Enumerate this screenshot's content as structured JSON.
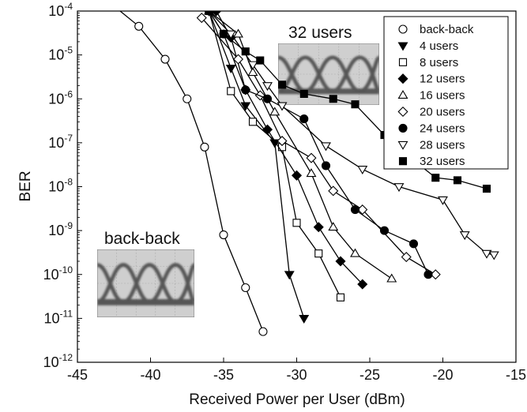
{
  "chart_data": {
    "type": "line",
    "xlabel": "Received Power per User (dBm)",
    "ylabel": "BER",
    "xlim": [
      -45,
      -15
    ],
    "ylim_exponent": [
      -12,
      -4
    ],
    "y_scale": "log",
    "x_ticks": [
      "-45",
      "-40",
      "-35",
      "-30",
      "-25",
      "-20",
      "-15"
    ],
    "y_tick_exponents": [
      "-4",
      "-5",
      "-6",
      "-7",
      "-8",
      "-9",
      "-10",
      "-11",
      "-12"
    ],
    "y_tick_base": "10",
    "grid": false,
    "legend_position": "top-right",
    "insets": [
      {
        "label": "back-back",
        "position": "lower-left"
      },
      {
        "label": "32 users",
        "position": "top-center"
      }
    ],
    "series": [
      {
        "name": "back-back",
        "marker": "circle-open",
        "x": [
          -42.5,
          -40.8,
          -39.0,
          -37.5,
          -36.3,
          -35.0,
          -33.5,
          -32.3
        ],
        "y": [
          0.00013,
          4.5e-05,
          8e-06,
          1e-06,
          8e-08,
          8e-10,
          5e-11,
          5e-12
        ]
      },
      {
        "name": "4 users",
        "marker": "triangle-down-filled",
        "x": [
          -36.0,
          -34.5,
          -33.5,
          -31.5,
          -30.5,
          -29.5
        ],
        "y": [
          0.0001,
          5e-06,
          7e-07,
          1e-07,
          1e-10,
          1e-11
        ]
      },
      {
        "name": "8 users",
        "marker": "square-open",
        "x": [
          -36.0,
          -34.5,
          -33.0,
          -31.0,
          -30.0,
          -28.5,
          -27.0
        ],
        "y": [
          0.0001,
          1.5e-06,
          3e-07,
          8e-08,
          1.5e-09,
          3e-10,
          3e-11
        ]
      },
      {
        "name": "12 users",
        "marker": "diamond-filled",
        "x": [
          -35.5,
          -34.5,
          -33.5,
          -32.0,
          -30.0,
          -28.5,
          -27.0,
          -25.5
        ],
        "y": [
          0.0001,
          2.5e-05,
          1.6e-06,
          2e-07,
          1.8e-08,
          1.2e-09,
          2e-10,
          6e-11
        ]
      },
      {
        "name": "16 users",
        "marker": "triangle-up-open",
        "x": [
          -36.0,
          -34.0,
          -33.0,
          -31.5,
          -29.0,
          -27.5,
          -26.0,
          -23.5
        ],
        "y": [
          0.0001,
          3e-05,
          4e-06,
          5e-07,
          2e-08,
          1.2e-09,
          3e-10,
          8e-11
        ]
      },
      {
        "name": "20 users",
        "marker": "diamond-open",
        "x": [
          -36.5,
          -34.0,
          -32.5,
          -31.0,
          -29.0,
          -27.5,
          -25.5,
          -22.5,
          -20.5
        ],
        "y": [
          7e-05,
          8e-06,
          1.2e-06,
          1.1e-07,
          4.5e-08,
          8e-09,
          3e-09,
          2.5e-10,
          1e-10
        ]
      },
      {
        "name": "24 users",
        "marker": "circle-filled",
        "x": [
          -36.0,
          -35.0,
          -33.5,
          -32.0,
          -29.5,
          -28.0,
          -26.0,
          -24.0,
          -22.0,
          -21.0
        ],
        "y": [
          0.0001,
          3e-05,
          1.6e-06,
          1e-06,
          3.5e-07,
          3e-08,
          3e-09,
          1e-09,
          5e-10,
          1e-10
        ]
      },
      {
        "name": "28 users",
        "marker": "triangle-down-open",
        "x": [
          -36.0,
          -34.5,
          -33.0,
          -32.0,
          -31.0,
          -28.0,
          -25.5,
          -23.0,
          -20.0,
          -18.5,
          -17.0,
          -16.5
        ],
        "y": [
          0.0001,
          3e-05,
          6e-06,
          2e-06,
          7e-07,
          8.5e-08,
          2.5e-08,
          1e-08,
          5e-09,
          8e-10,
          3e-10,
          2.8e-10
        ]
      },
      {
        "name": "32 users",
        "marker": "square-filled",
        "x": [
          -36.0,
          -35.0,
          -33.5,
          -32.5,
          -31.0,
          -29.5,
          -27.5,
          -26.0,
          -24.0,
          -22.0,
          -20.5,
          -19.0,
          -17.0
        ],
        "y": [
          0.0001,
          3e-05,
          1.2e-05,
          7.5e-06,
          2.1e-06,
          1.3e-06,
          1e-06,
          7.5e-07,
          1.5e-07,
          4e-08,
          1.6e-08,
          1.4e-08,
          9e-09
        ]
      }
    ]
  }
}
